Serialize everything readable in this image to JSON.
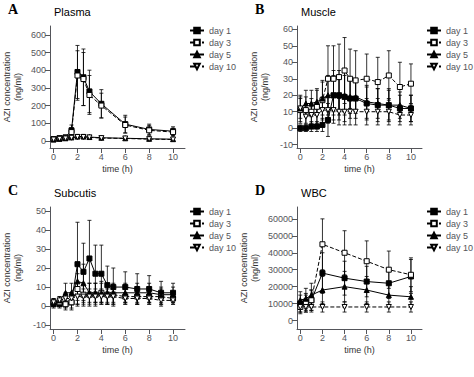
{
  "chart_data": [
    {
      "type": "line",
      "title": "Plasma",
      "annotations": [
        "A"
      ],
      "xlabel": "time (h)",
      "ylabel": "AZI concentration\n(ng/ml)",
      "xlim": [
        -0.3,
        11
      ],
      "xticks": [
        0,
        2,
        4,
        6,
        8,
        10
      ],
      "ylim": [
        -40,
        650
      ],
      "yticks": [
        0,
        100,
        200,
        300,
        400,
        500,
        600
      ],
      "grid": false,
      "legend": "upper right",
      "x": [
        0,
        0.5,
        1,
        1.5,
        2,
        2.5,
        3,
        4,
        6,
        8,
        10
      ],
      "series": [
        {
          "name": "day 1",
          "color": "#000000",
          "marker": "square",
          "line_style": "solid",
          "values": [
            10,
            15,
            20,
            60,
            390,
            360,
            280,
            210,
            95,
            65,
            55
          ],
          "errors": [
            5,
            8,
            10,
            30,
            150,
            160,
            120,
            80,
            50,
            30,
            25
          ]
        },
        {
          "name": "day 3",
          "color": "#000000",
          "marker": "open_square",
          "line_style": "dashed",
          "values": [
            10,
            15,
            18,
            50,
            370,
            350,
            260,
            200,
            90,
            60,
            50
          ],
          "errors": [
            5,
            8,
            10,
            25,
            140,
            150,
            110,
            70,
            45,
            28,
            22
          ]
        },
        {
          "name": "day 5",
          "color": "#000000",
          "marker": "triangle_up",
          "line_style": "solid",
          "values": [
            8,
            12,
            15,
            20,
            25,
            25,
            22,
            18,
            15,
            12,
            10
          ],
          "errors": [
            4,
            6,
            8,
            10,
            12,
            12,
            10,
            8,
            7,
            6,
            5
          ]
        },
        {
          "name": "day 10",
          "color": "#000000",
          "marker": "open_triangle_down",
          "line_style": "dashed",
          "values": [
            8,
            12,
            14,
            18,
            22,
            22,
            20,
            16,
            14,
            10,
            8
          ],
          "errors": [
            4,
            5,
            7,
            8,
            10,
            10,
            9,
            7,
            6,
            5,
            4
          ]
        }
      ]
    },
    {
      "type": "line",
      "title": "Muscle",
      "annotations": [
        "B"
      ],
      "xlabel": "time (h)",
      "ylabel": "AZI concentration\n(ng/ml)",
      "xlim": [
        -0.3,
        11
      ],
      "xticks": [
        0,
        2,
        4,
        6,
        8,
        10
      ],
      "ylim": [
        -12,
        62
      ],
      "yticks": [
        -10,
        0,
        10,
        20,
        30,
        40,
        50,
        60
      ],
      "grid": false,
      "legend": "upper right",
      "x": [
        0,
        0.5,
        1,
        1.5,
        2,
        2.5,
        3,
        3.5,
        4,
        4.5,
        5,
        6,
        7,
        8,
        9,
        10
      ],
      "series": [
        {
          "name": "day 1",
          "color": "#000000",
          "marker": "square",
          "line_style": "solid",
          "values": [
            0,
            0,
            1,
            1,
            2,
            5,
            20,
            20,
            19,
            18,
            18,
            15,
            14,
            14,
            12,
            12
          ],
          "errors": [
            2,
            2,
            3,
            3,
            4,
            10,
            15,
            15,
            15,
            12,
            12,
            10,
            10,
            10,
            8,
            8
          ]
        },
        {
          "name": "day 3",
          "color": "#000000",
          "marker": "open_square",
          "line_style": "dashed",
          "values": [
            11,
            11,
            10,
            13,
            17,
            30,
            30,
            31,
            35,
            30,
            29,
            30,
            28,
            32,
            25,
            27
          ],
          "errors": [
            8,
            8,
            8,
            10,
            12,
            20,
            20,
            20,
            20,
            18,
            18,
            15,
            15,
            15,
            15,
            12
          ]
        },
        {
          "name": "day 5",
          "color": "#000000",
          "marker": "triangle_up",
          "line_style": "solid",
          "values": [
            12,
            15,
            15,
            16,
            18,
            20,
            20,
            20,
            20,
            19,
            19,
            16,
            15,
            14,
            14,
            12
          ],
          "errors": [
            8,
            8,
            8,
            8,
            10,
            12,
            12,
            12,
            12,
            10,
            10,
            10,
            9,
            9,
            8,
            8
          ]
        },
        {
          "name": "day 10",
          "color": "#000000",
          "marker": "open_triangle_down",
          "line_style": "dashed",
          "values": [
            12,
            7,
            8,
            8,
            11,
            11,
            11,
            10,
            10,
            10,
            10,
            10,
            10,
            10,
            8,
            8
          ],
          "errors": [
            6,
            5,
            5,
            6,
            8,
            8,
            8,
            8,
            8,
            8,
            8,
            8,
            8,
            8,
            6,
            6
          ]
        }
      ]
    },
    {
      "type": "line",
      "title": "Subcutis",
      "annotations": [
        "C"
      ],
      "xlabel": "time (h)",
      "ylabel": "AZI concentration\n(ng/ml)",
      "xlim": [
        -0.3,
        11
      ],
      "xticks": [
        0,
        2,
        4,
        6,
        8,
        10
      ],
      "ylim": [
        -12,
        52
      ],
      "yticks": [
        -10,
        0,
        10,
        20,
        30,
        40,
        50
      ],
      "grid": false,
      "legend": "upper right",
      "x": [
        0,
        0.5,
        1,
        1.5,
        2,
        2.5,
        3,
        3.5,
        4,
        4.5,
        5,
        6,
        7,
        8,
        9,
        10
      ],
      "series": [
        {
          "name": "day 1",
          "color": "#000000",
          "marker": "square",
          "line_style": "solid",
          "values": [
            1,
            1,
            1,
            2,
            22,
            18,
            25,
            17,
            17,
            11,
            10,
            10,
            9,
            9,
            7,
            7
          ],
          "errors": [
            2,
            2,
            3,
            4,
            22,
            15,
            20,
            15,
            15,
            10,
            10,
            8,
            8,
            7,
            6,
            5
          ]
        },
        {
          "name": "day 3",
          "color": "#000000",
          "marker": "open_square",
          "line_style": "dashed",
          "values": [
            2,
            2,
            1,
            2,
            9,
            6,
            6,
            6,
            7,
            6,
            6,
            5,
            5,
            5,
            5,
            4
          ],
          "errors": [
            2,
            2,
            2,
            3,
            8,
            6,
            6,
            6,
            6,
            5,
            5,
            4,
            4,
            4,
            4,
            3
          ]
        },
        {
          "name": "day 5",
          "color": "#000000",
          "marker": "triangle_up",
          "line_style": "solid",
          "values": [
            2,
            3,
            7,
            7,
            13,
            12,
            7,
            7,
            7,
            7,
            7,
            7,
            7,
            7,
            6,
            6
          ],
          "errors": [
            2,
            2,
            5,
            5,
            10,
            10,
            5,
            5,
            5,
            5,
            5,
            5,
            5,
            5,
            4,
            4
          ]
        },
        {
          "name": "day 10",
          "color": "#000000",
          "marker": "open_triangle_down",
          "line_style": "dashed",
          "values": [
            2,
            3,
            4,
            4,
            5,
            5,
            5,
            5,
            5,
            5,
            5,
            4,
            4,
            4,
            3,
            3
          ],
          "errors": [
            1,
            2,
            3,
            3,
            4,
            4,
            4,
            4,
            4,
            4,
            4,
            3,
            3,
            3,
            3,
            2
          ]
        }
      ]
    },
    {
      "type": "line",
      "title": "WBC",
      "annotations": [
        "D"
      ],
      "xlabel": "time (h)",
      "ylabel": "AZI concentration\n(ng/ml)",
      "xlim": [
        -0.3,
        11
      ],
      "xticks": [
        0,
        2,
        4,
        6,
        8,
        10
      ],
      "ylim": [
        -5000,
        67000
      ],
      "yticks": [
        0,
        10000,
        20000,
        30000,
        40000,
        50000,
        60000
      ],
      "grid": false,
      "legend": "upper right",
      "x": [
        0,
        0.5,
        1,
        2,
        4,
        6,
        8,
        10
      ],
      "series": [
        {
          "name": "day 1",
          "color": "#000000",
          "marker": "square",
          "line_style": "solid",
          "values": [
            10000,
            11000,
            12000,
            28000,
            25000,
            23000,
            22000,
            26000
          ],
          "errors": [
            5000,
            5000,
            6000,
            12000,
            10000,
            9000,
            9000,
            10000
          ]
        },
        {
          "name": "day 3",
          "color": "#000000",
          "marker": "open_square",
          "line_style": "dashed",
          "values": [
            8000,
            10000,
            12000,
            45000,
            40000,
            35000,
            30000,
            27000
          ],
          "errors": [
            4000,
            5000,
            6000,
            15000,
            13000,
            12000,
            11000,
            10000
          ]
        },
        {
          "name": "day 5",
          "color": "#000000",
          "marker": "triangle_up",
          "line_style": "solid",
          "values": [
            12000,
            13000,
            15000,
            18000,
            20000,
            18000,
            15000,
            14000
          ],
          "errors": [
            5000,
            6000,
            7000,
            8000,
            9000,
            8000,
            7000,
            6000
          ]
        },
        {
          "name": "day 10",
          "color": "#000000",
          "marker": "open_triangle_down",
          "line_style": "dashed",
          "values": [
            8000,
            8000,
            8000,
            8000,
            8000,
            8000,
            8000,
            8000
          ],
          "errors": [
            3000,
            3000,
            3000,
            3000,
            3000,
            3000,
            3000,
            3000
          ]
        }
      ]
    }
  ]
}
